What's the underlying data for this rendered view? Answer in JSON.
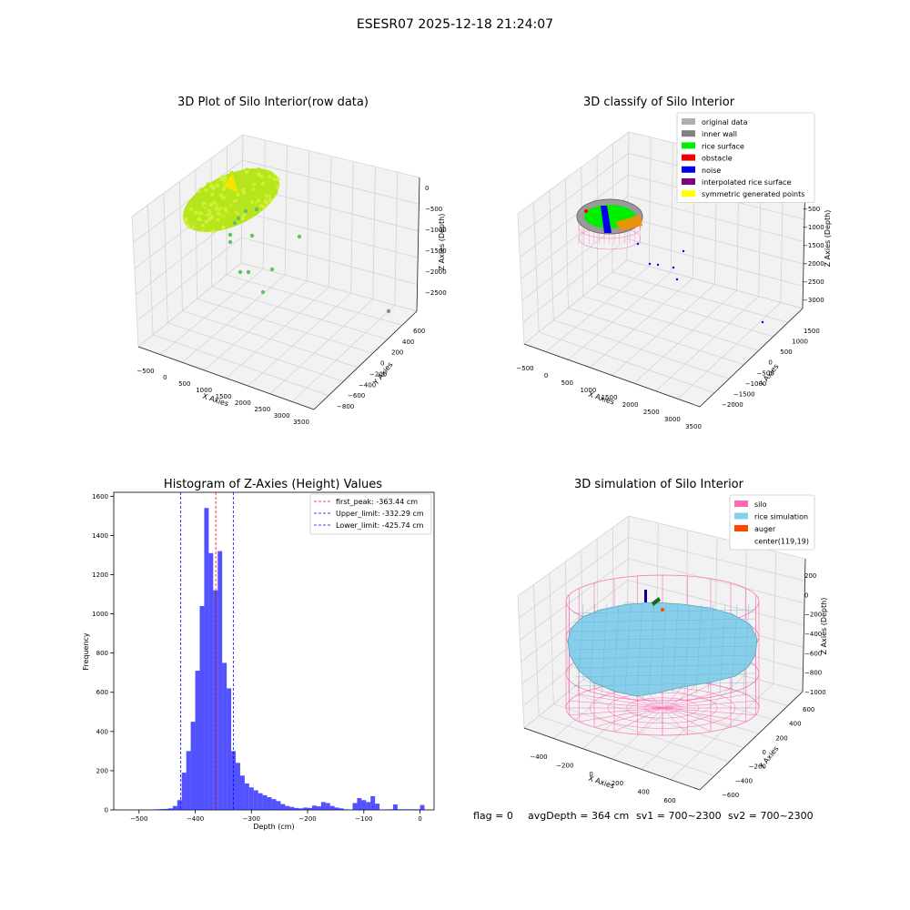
{
  "figure": {
    "suptitle": "ESESR07 2025-12-18 21:24:07",
    "footer": {
      "flag": "flag = 0",
      "avg_depth": "avgDepth = 364 cm",
      "sv1": "sv1 = 700~2300",
      "sv2": "sv2 = 700~2300"
    }
  },
  "panels": {
    "raw": {
      "title": "3D Plot of Silo Interior(row data)",
      "x_label": "X Axies",
      "y_label": "Y Axies",
      "z_label": "Z Axies (Depth)",
      "x_ticks": [
        "−500",
        "0",
        "500",
        "1000",
        "1500",
        "2000",
        "2500",
        "3000",
        "3500"
      ],
      "y_ticks": [
        "−800",
        "−600",
        "−400",
        "−200",
        "0",
        "200",
        "400",
        "600"
      ],
      "z_ticks": [
        "0",
        "−500",
        "−1000",
        "−1500",
        "−2000",
        "−2500"
      ],
      "colors": {
        "cluster": "#b5e61d",
        "cluster_light": "#d8f03a",
        "outlier": "#5cc463",
        "outlier_far": "#8c8c8c"
      }
    },
    "classify": {
      "title": "3D classify of Silo Interior",
      "x_label": "X Axies",
      "y_label": "Y Axies",
      "z_label": "Z Axies (Depth)",
      "x_ticks": [
        "−500",
        "0",
        "500",
        "1000",
        "1500",
        "2000",
        "2500",
        "3000",
        "3500"
      ],
      "y_ticks": [
        "−2000",
        "−1500",
        "−1000",
        "−500",
        "0",
        "500",
        "1000",
        "1500"
      ],
      "z_ticks": [
        "0",
        "−500",
        "−1000",
        "−1500",
        "−2000",
        "−2500",
        "−3000"
      ],
      "legend": [
        {
          "label": "original data",
          "color": "#b0b0b0"
        },
        {
          "label": "inner wall",
          "color": "#808080"
        },
        {
          "label": "rice surface",
          "color": "#00ee00"
        },
        {
          "label": "obstacle",
          "color": "#ee0000"
        },
        {
          "label": "noise",
          "color": "#0000ee"
        },
        {
          "label": "interpolated rice surface",
          "color": "#800080"
        },
        {
          "label": "symmetric generated points",
          "color": "#ffff00"
        }
      ]
    },
    "simulation": {
      "title": "3D simulation of Silo Interior",
      "x_label": "X Axies",
      "y_label": "Y Axies",
      "z_label": "Z Axies (Depth)",
      "x_ticks": [
        "−400",
        "−200",
        "0",
        "200",
        "400",
        "600"
      ],
      "y_ticks": [
        "−600",
        "−400",
        "−200",
        "0",
        "200",
        "400",
        "600"
      ],
      "z_ticks": [
        "200",
        "0",
        "−200",
        "−400",
        "−600",
        "−800",
        "−1000"
      ],
      "legend": [
        {
          "label": "silo",
          "color": "#ff69b4"
        },
        {
          "label": "rice simulation",
          "color": "#87ceeb"
        },
        {
          "label": "auger",
          "color": "#ff4500"
        },
        {
          "label": "center(119,19)",
          "color": ""
        }
      ]
    }
  },
  "chart_data": {
    "type": "bar",
    "title": "Histogram of Z-Axies (Height) Values",
    "xlabel": "Depth (cm)",
    "ylabel": "Frequency",
    "xlim": [
      -545,
      25
    ],
    "ylim": [
      0,
      1620
    ],
    "x_ticks": [
      -500,
      -400,
      -300,
      -200,
      -100,
      0
    ],
    "y_ticks": [
      0,
      200,
      400,
      600,
      800,
      1000,
      1200,
      1400,
      1600
    ],
    "bin_width": 8,
    "bin_edges_start": [
      -480,
      -472,
      -464,
      -456,
      -448,
      -440,
      -432,
      -424,
      -416,
      -408,
      -400,
      -392,
      -384,
      -376,
      -368,
      -360,
      -352,
      -344,
      -336,
      -328,
      -320,
      -312,
      -304,
      -296,
      -288,
      -280,
      -272,
      -264,
      -256,
      -248,
      -240,
      -232,
      -224,
      -216,
      -208,
      -200,
      -192,
      -184,
      -176,
      -168,
      -160,
      -152,
      -144,
      -136,
      -128,
      -120,
      -112,
      -104,
      -96,
      -88,
      -80,
      -72,
      -64,
      -56,
      -48,
      -40,
      -32,
      -24,
      -16,
      -8,
      0
    ],
    "values": [
      2,
      3,
      4,
      5,
      8,
      20,
      50,
      190,
      300,
      450,
      710,
      1040,
      1540,
      1310,
      1120,
      1320,
      750,
      620,
      300,
      240,
      175,
      135,
      115,
      100,
      85,
      75,
      65,
      55,
      45,
      30,
      20,
      15,
      10,
      8,
      12,
      10,
      22,
      18,
      40,
      35,
      20,
      12,
      8,
      3,
      1,
      35,
      60,
      50,
      40,
      70,
      32,
      2,
      2,
      3,
      28,
      3,
      3,
      3,
      3,
      3,
      25
    ],
    "color": "#0000ff",
    "reference_lines": [
      {
        "label": "first_peak: -363.44 cm",
        "x": -363.44,
        "color": "#ff0000"
      },
      {
        "label": "Upper_limit: -332.29 cm",
        "x": -332.29,
        "color": "#0000ff"
      },
      {
        "label": "Lower_limit: -425.74 cm",
        "x": -425.74,
        "color": "#0000ff"
      }
    ],
    "legend_position": "top-right",
    "grid": false
  }
}
